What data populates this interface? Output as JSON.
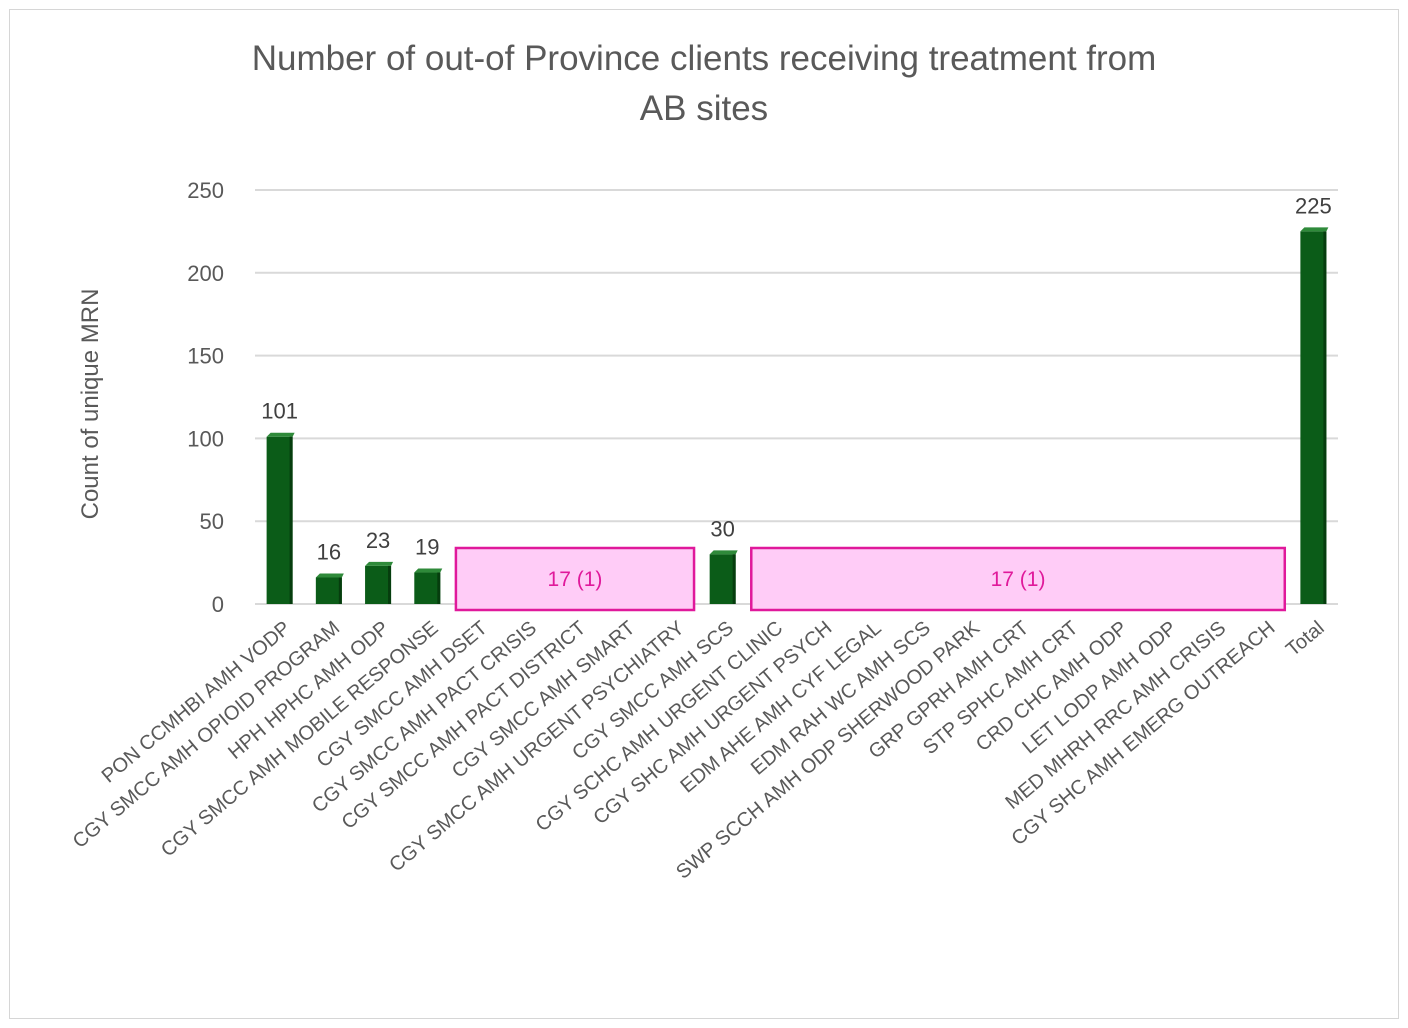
{
  "chart_data": {
    "type": "bar",
    "title_lines": [
      "Number of out-of Province clients receiving treatment from",
      "AB sites"
    ],
    "xlabel": "",
    "ylabel": "Count of unique MRN",
    "ylim": [
      0,
      250
    ],
    "yticks": [
      0,
      50,
      100,
      150,
      200,
      250
    ],
    "grid": true,
    "bar_color": "#0b5c18",
    "categories": [
      "PON CCMHBI AMH VODP",
      "CGY SMCC AMH OPIOID PROGRAM",
      "HPH HPHC AMH ODP",
      "CGY SMCC AMH MOBILE RESPONSE",
      "CGY SMCC AMH DSET",
      "CGY SMCC AMH PACT CRISIS",
      "CGY SMCC AMH PACT DISTRICT",
      "CGY SMCC AMH SMART",
      "CGY SMCC AMH URGENT PSYCHIATRY",
      "CGY SMCC AMH SCS",
      "CGY SCHC AMH URGENT CLINIC",
      "CGY SHC AMH URGENT PSYCH",
      "EDM AHE AMH CYF LEGAL",
      "EDM RAH WC AMH SCS",
      "SWP SCCH AMH ODP SHERWOOD PARK",
      "GRP GPRH AMH CRT",
      "STP SPHC AMH CRT",
      "CRD CHC AMH ODP",
      "LET LODP AMH ODP",
      "MED MHRH RRC AMH CRISIS",
      "CGY SHC AMH EMERG OUTREACH",
      "Total"
    ],
    "values": [
      101,
      16,
      23,
      19,
      null,
      null,
      null,
      null,
      null,
      30,
      null,
      null,
      null,
      null,
      null,
      null,
      null,
      null,
      null,
      null,
      null,
      225
    ],
    "data_labels": [
      "101",
      "16",
      "23",
      "19",
      "",
      "",
      "",
      "",
      "",
      "30",
      "",
      "",
      "",
      "",
      "",
      "",
      "",
      "",
      "",
      "",
      "",
      "225"
    ],
    "annotations": [
      {
        "label": "17 (1)",
        "covers_categories": [
          4,
          8
        ],
        "color": "#e0199b",
        "fill": "#ffccf7"
      },
      {
        "label": "17 (1)",
        "covers_categories": [
          10,
          20
        ],
        "color": "#e0199b",
        "fill": "#ffccf7"
      }
    ]
  }
}
